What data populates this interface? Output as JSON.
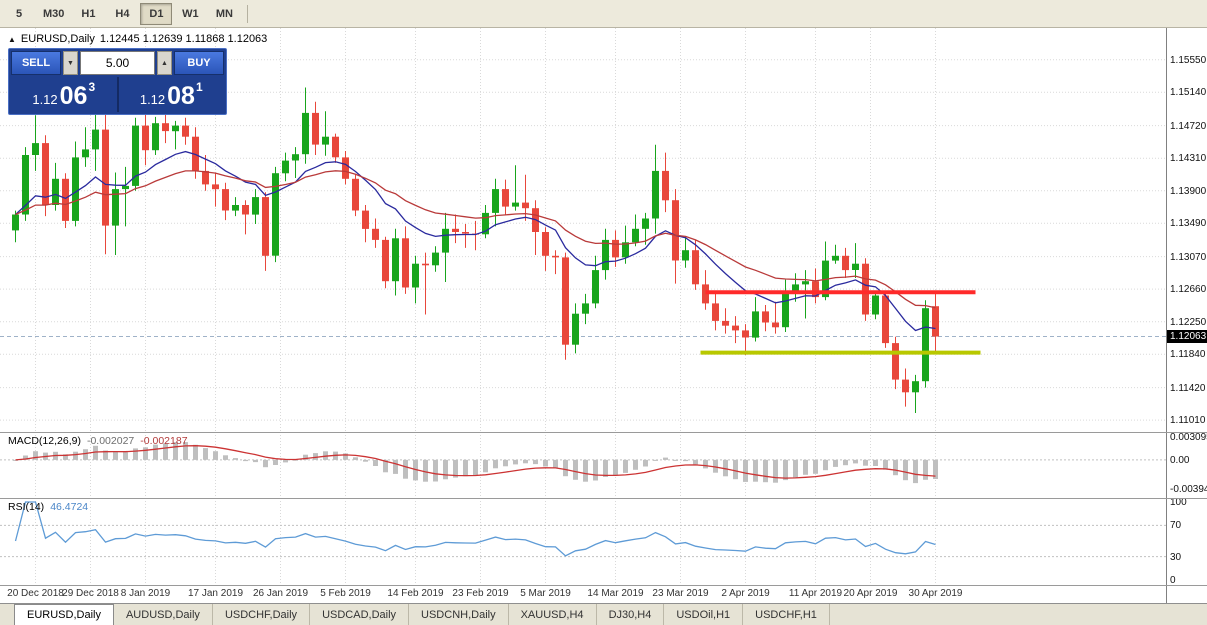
{
  "toolbar": {
    "timeframe_buttons": [
      {
        "label": "5",
        "active": false
      },
      {
        "label": "M30",
        "active": false
      },
      {
        "label": "H1",
        "active": false
      },
      {
        "label": "H4",
        "active": false
      },
      {
        "label": "D1",
        "active": true
      },
      {
        "label": "W1",
        "active": false
      },
      {
        "label": "MN",
        "active": false
      }
    ]
  },
  "window": {
    "symbol_title": "EURUSD,Daily",
    "ohlc_text": "1.12445 1.12639 1.11868 1.12063"
  },
  "trade_panel": {
    "sell_label": "SELL",
    "buy_label": "BUY",
    "volume": "5.00",
    "bid": {
      "big": "1.12",
      "pips": "06",
      "pt": "3"
    },
    "ask": {
      "big": "1.12",
      "pips": "08",
      "pt": "1"
    }
  },
  "price_axis": {
    "labels": [
      "1.15550",
      "1.15140",
      "1.14720",
      "1.14310",
      "1.13900",
      "1.13490",
      "1.13070",
      "1.12660",
      "1.12250",
      "1.11840",
      "1.11420",
      "1.11010"
    ],
    "current_price": "1.12063"
  },
  "macd": {
    "title": "MACD(12,26,9)",
    "main_value": "-0.002027",
    "signal_value": "-0.002187",
    "axis_labels": [
      "0.003095",
      "0.00",
      "-0.00394"
    ],
    "axis_values": [
      0.003095,
      0,
      -0.00394
    ]
  },
  "rsi": {
    "title": "RSI(14)",
    "value": "46.4724",
    "axis_labels": [
      "100",
      "70",
      "30",
      "0"
    ],
    "axis_values": [
      100,
      70,
      30,
      0
    ],
    "levels": [
      70,
      30
    ]
  },
  "date_axis": {
    "labels": [
      {
        "text": "20 Dec 2018",
        "i": 2
      },
      {
        "text": "29 Dec 2018",
        "i": 7.5
      },
      {
        "text": "8 Jan 2019",
        "i": 13
      },
      {
        "text": "17 Jan 2019",
        "i": 20
      },
      {
        "text": "26 Jan 2019",
        "i": 26.5
      },
      {
        "text": "5 Feb 2019",
        "i": 33
      },
      {
        "text": "14 Feb 2019",
        "i": 40
      },
      {
        "text": "23 Feb 2019",
        "i": 46.5
      },
      {
        "text": "5 Mar 2019",
        "i": 53
      },
      {
        "text": "14 Mar 2019",
        "i": 60
      },
      {
        "text": "23 Mar 2019",
        "i": 66.5
      },
      {
        "text": "2 Apr 2019",
        "i": 73
      },
      {
        "text": "11 Apr 2019",
        "i": 80
      },
      {
        "text": "20 Apr 2019",
        "i": 85.5
      },
      {
        "text": "30 Apr 2019",
        "i": 92
      }
    ]
  },
  "tabs": [
    {
      "label": "EURUSD,Daily",
      "active": true
    },
    {
      "label": "AUDUSD,Daily",
      "active": false
    },
    {
      "label": "USDCHF,Daily",
      "active": false
    },
    {
      "label": "USDCAD,Daily",
      "active": false
    },
    {
      "label": "USDCNH,Daily",
      "active": false
    },
    {
      "label": "XAUUSD,H4",
      "active": false
    },
    {
      "label": "DJ30,H4",
      "active": false
    },
    {
      "label": "USDOil,H1",
      "active": false
    },
    {
      "label": "USDCHF,H1",
      "active": false
    }
  ],
  "colors": {
    "bull": "#18a51c",
    "bear": "#e8473b",
    "grid": "#d9d9d9",
    "ema_fast": "#2a2a9e",
    "ema_slow": "#b93a3a",
    "macd_hist": "#bfbfbf",
    "macd_signal": "#cc3333",
    "rsi_line": "#5e9bd6",
    "resistance": "#ff2a2a",
    "support": "#b8c800",
    "bid_line": "#9fb2c8"
  },
  "chart_data": {
    "type": "candlestick",
    "symbol": "EURUSD",
    "timeframe": "Daily",
    "ohlc_current": {
      "open": 1.12445,
      "high": 1.12639,
      "low": 1.11868,
      "close": 1.12063
    },
    "y_ticks": [
      1.1555,
      1.1514,
      1.1472,
      1.1431,
      1.139,
      1.1349,
      1.1307,
      1.1266,
      1.1225,
      1.1184,
      1.1142,
      1.1101
    ],
    "scale": {
      "price_at_top": 1.1595,
      "price_at_bottom": 1.1086
    },
    "candles": [
      [
        1.134,
        1.1365,
        1.1325,
        1.136
      ],
      [
        1.136,
        1.1445,
        1.1352,
        1.1435
      ],
      [
        1.1435,
        1.1485,
        1.1415,
        1.145
      ],
      [
        1.145,
        1.146,
        1.1358,
        1.1372
      ],
      [
        1.1372,
        1.1425,
        1.1365,
        1.1405
      ],
      [
        1.1405,
        1.1412,
        1.1343,
        1.1352
      ],
      [
        1.1352,
        1.1452,
        1.1345,
        1.1432
      ],
      [
        1.1432,
        1.147,
        1.142,
        1.1442
      ],
      [
        1.1442,
        1.15,
        1.1415,
        1.1467
      ],
      [
        1.1467,
        1.1497,
        1.131,
        1.1346
      ],
      [
        1.1346,
        1.1413,
        1.1309,
        1.1392
      ],
      [
        1.1392,
        1.142,
        1.1345,
        1.1396
      ],
      [
        1.1396,
        1.1482,
        1.139,
        1.1472
      ],
      [
        1.1472,
        1.149,
        1.1422,
        1.1441
      ],
      [
        1.1441,
        1.1483,
        1.1435,
        1.1475
      ],
      [
        1.1475,
        1.149,
        1.145,
        1.1465
      ],
      [
        1.1465,
        1.1478,
        1.1442,
        1.1472
      ],
      [
        1.1472,
        1.1482,
        1.1448,
        1.1458
      ],
      [
        1.1458,
        1.147,
        1.1405,
        1.1415
      ],
      [
        1.1415,
        1.1435,
        1.139,
        1.1398
      ],
      [
        1.1398,
        1.1412,
        1.137,
        1.1392
      ],
      [
        1.1392,
        1.14,
        1.1353,
        1.1365
      ],
      [
        1.1365,
        1.1382,
        1.1358,
        1.1372
      ],
      [
        1.1372,
        1.1378,
        1.1335,
        1.136
      ],
      [
        1.136,
        1.1392,
        1.1348,
        1.1382
      ],
      [
        1.1382,
        1.1388,
        1.1289,
        1.1308
      ],
      [
        1.1308,
        1.142,
        1.13,
        1.1412
      ],
      [
        1.1412,
        1.1438,
        1.1402,
        1.1428
      ],
      [
        1.1428,
        1.1445,
        1.1406,
        1.1436
      ],
      [
        1.1436,
        1.152,
        1.1424,
        1.1488
      ],
      [
        1.1488,
        1.1502,
        1.1435,
        1.1448
      ],
      [
        1.1448,
        1.149,
        1.1434,
        1.1458
      ],
      [
        1.1458,
        1.1462,
        1.1425,
        1.1432
      ],
      [
        1.1432,
        1.144,
        1.1398,
        1.1405
      ],
      [
        1.1405,
        1.141,
        1.1358,
        1.1365
      ],
      [
        1.1365,
        1.1372,
        1.1325,
        1.1342
      ],
      [
        1.1342,
        1.1355,
        1.1318,
        1.1328
      ],
      [
        1.1328,
        1.1332,
        1.1267,
        1.1276
      ],
      [
        1.1276,
        1.1342,
        1.1258,
        1.133
      ],
      [
        1.133,
        1.1345,
        1.126,
        1.1268
      ],
      [
        1.1268,
        1.1308,
        1.1248,
        1.1298
      ],
      [
        1.1298,
        1.1312,
        1.1234,
        1.1296
      ],
      [
        1.1296,
        1.132,
        1.1288,
        1.1312
      ],
      [
        1.1312,
        1.1362,
        1.1275,
        1.1342
      ],
      [
        1.1342,
        1.136,
        1.1324,
        1.1338
      ],
      [
        1.1338,
        1.1348,
        1.1318,
        1.1336
      ],
      [
        1.1336,
        1.1352,
        1.1315,
        1.1335
      ],
      [
        1.1335,
        1.1372,
        1.133,
        1.1362
      ],
      [
        1.1362,
        1.1405,
        1.1345,
        1.1392
      ],
      [
        1.1392,
        1.1404,
        1.136,
        1.137
      ],
      [
        1.137,
        1.1422,
        1.1365,
        1.1375
      ],
      [
        1.1375,
        1.141,
        1.1352,
        1.1368
      ],
      [
        1.1368,
        1.1378,
        1.1309,
        1.1338
      ],
      [
        1.1338,
        1.1344,
        1.1289,
        1.1308
      ],
      [
        1.1308,
        1.1315,
        1.1285,
        1.1306
      ],
      [
        1.1306,
        1.1312,
        1.1177,
        1.1196
      ],
      [
        1.1196,
        1.1248,
        1.1185,
        1.1235
      ],
      [
        1.1235,
        1.126,
        1.1222,
        1.1248
      ],
      [
        1.1248,
        1.1308,
        1.1242,
        1.129
      ],
      [
        1.129,
        1.1342,
        1.1278,
        1.1328
      ],
      [
        1.1328,
        1.134,
        1.1294,
        1.1306
      ],
      [
        1.1306,
        1.1346,
        1.1298,
        1.1325
      ],
      [
        1.1325,
        1.136,
        1.132,
        1.1342
      ],
      [
        1.1342,
        1.1362,
        1.1322,
        1.1355
      ],
      [
        1.1355,
        1.1448,
        1.1336,
        1.1415
      ],
      [
        1.1415,
        1.1438,
        1.1363,
        1.1378
      ],
      [
        1.1378,
        1.1392,
        1.1273,
        1.1302
      ],
      [
        1.1302,
        1.1332,
        1.1293,
        1.1315
      ],
      [
        1.1315,
        1.1328,
        1.1265,
        1.1272
      ],
      [
        1.1272,
        1.129,
        1.124,
        1.1248
      ],
      [
        1.1248,
        1.1262,
        1.1214,
        1.1226
      ],
      [
        1.1226,
        1.1242,
        1.121,
        1.122
      ],
      [
        1.122,
        1.1232,
        1.1198,
        1.1214
      ],
      [
        1.1214,
        1.1222,
        1.1183,
        1.1205
      ],
      [
        1.1205,
        1.1256,
        1.12,
        1.1238
      ],
      [
        1.1238,
        1.1246,
        1.1213,
        1.1224
      ],
      [
        1.1224,
        1.125,
        1.121,
        1.1218
      ],
      [
        1.1218,
        1.1278,
        1.1212,
        1.1264
      ],
      [
        1.1264,
        1.1286,
        1.125,
        1.1272
      ],
      [
        1.1272,
        1.129,
        1.1229,
        1.1276
      ],
      [
        1.1276,
        1.1292,
        1.1248,
        1.1256
      ],
      [
        1.1256,
        1.1326,
        1.1252,
        1.1302
      ],
      [
        1.1302,
        1.1322,
        1.1298,
        1.1308
      ],
      [
        1.1308,
        1.1318,
        1.128,
        1.129
      ],
      [
        1.129,
        1.1324,
        1.128,
        1.1298
      ],
      [
        1.1298,
        1.1305,
        1.1226,
        1.1234
      ],
      [
        1.1234,
        1.1262,
        1.1228,
        1.1258
      ],
      [
        1.1258,
        1.1262,
        1.1192,
        1.1198
      ],
      [
        1.1198,
        1.1206,
        1.114,
        1.1152
      ],
      [
        1.1152,
        1.1166,
        1.1118,
        1.1136
      ],
      [
        1.1136,
        1.1158,
        1.111,
        1.115
      ],
      [
        1.115,
        1.1252,
        1.1142,
        1.1242
      ],
      [
        1.12445,
        1.12639,
        1.11868,
        1.12063
      ]
    ],
    "overlays": {
      "ema_periods": [
        12,
        26
      ],
      "resistance": {
        "price": 1.1262,
        "from_index": 69,
        "to_index": 96
      },
      "support": {
        "price": 1.1186,
        "from_index": 68.5,
        "to_index": 96.5
      },
      "bid_line_price": 1.12063
    },
    "macd_params": [
      12,
      26,
      9
    ],
    "macd_range": [
      -0.0048,
      0.0034
    ],
    "macd_current": [
      -0.002027,
      -0.002187
    ],
    "rsi_period": 14,
    "rsi_current": 46.4724
  }
}
